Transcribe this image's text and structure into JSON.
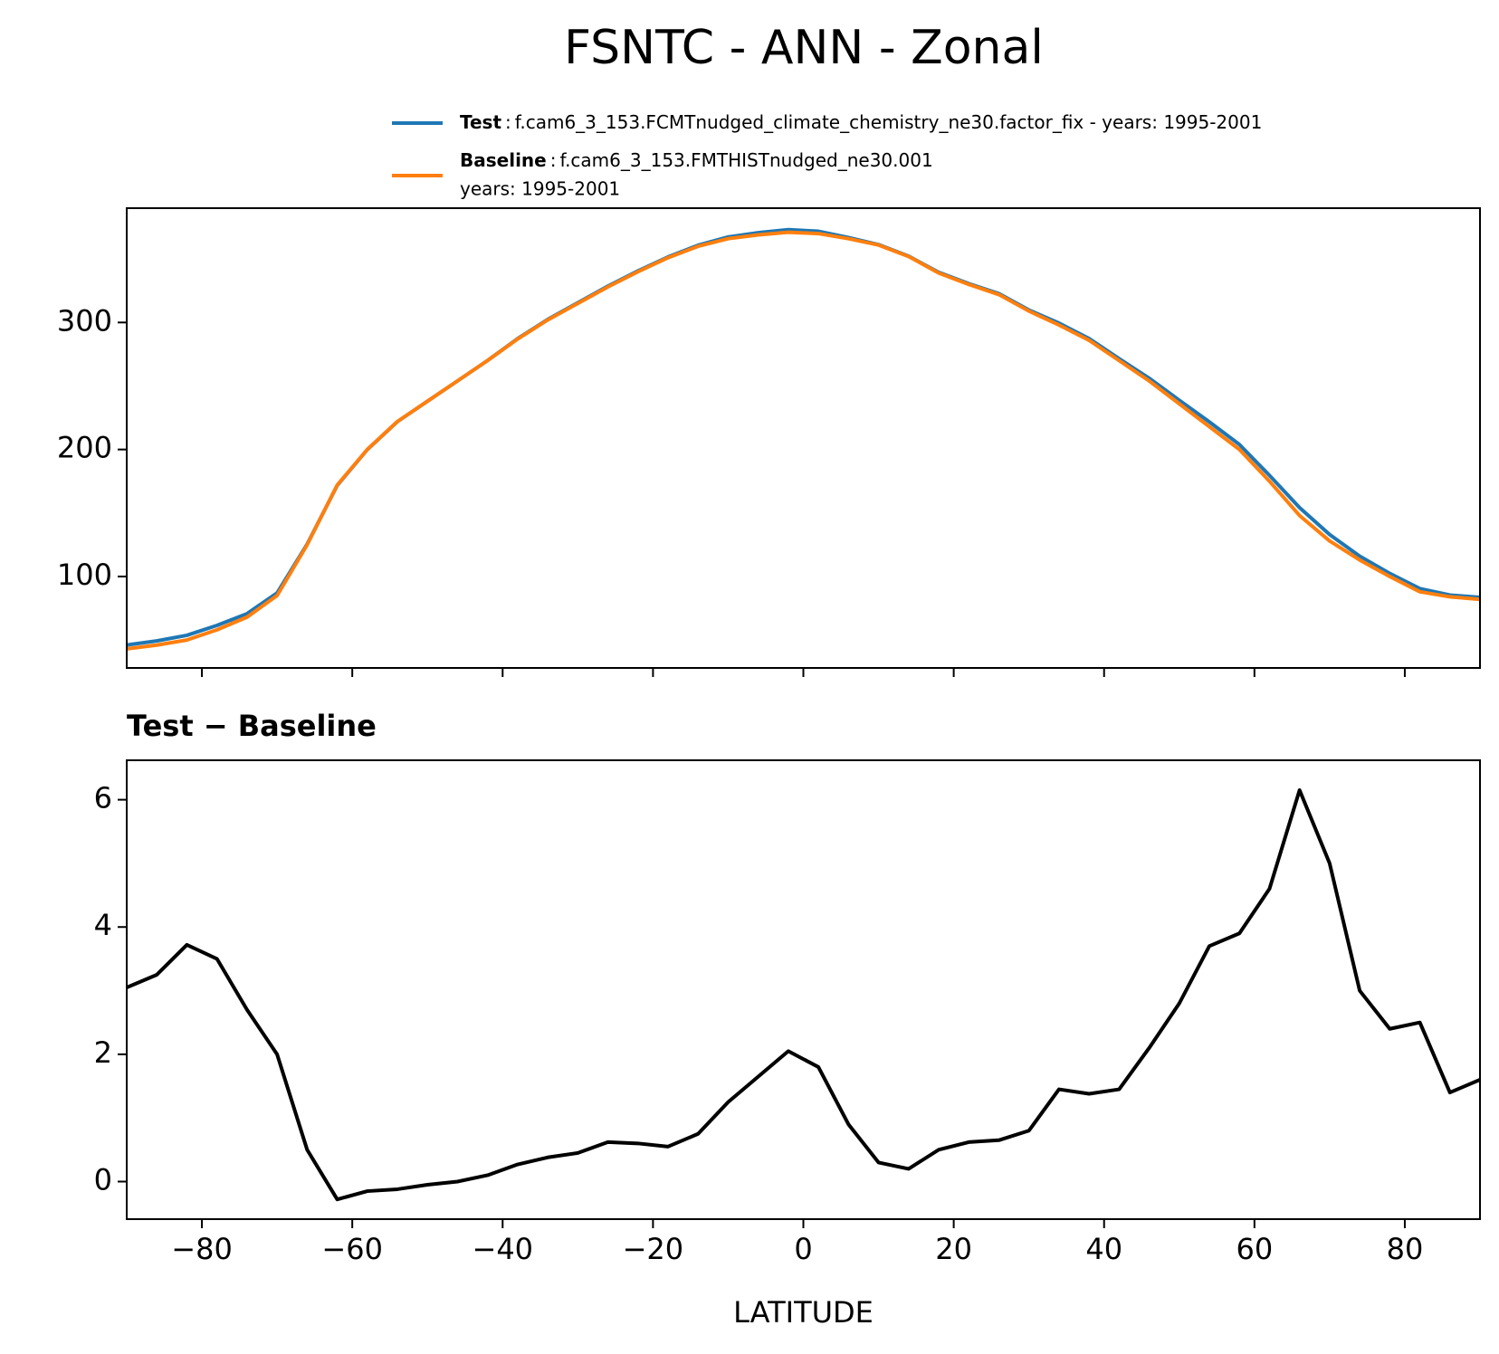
{
  "figure_title": "FSNTC - ANN - Zonal",
  "chart_data": [
    {
      "type": "line",
      "x": [
        -90,
        -86,
        -82,
        -78,
        -74,
        -70,
        -66,
        -62,
        -58,
        -54,
        -50,
        -46,
        -42,
        -38,
        -34,
        -30,
        -26,
        -22,
        -18,
        -14,
        -10,
        -6,
        -2,
        2,
        6,
        10,
        14,
        18,
        22,
        26,
        30,
        34,
        38,
        42,
        46,
        50,
        54,
        58,
        62,
        66,
        70,
        74,
        78,
        82,
        86,
        90
      ],
      "series": [
        {
          "name": "Test",
          "description": [
            "f.cam6_3_153.FCMTnudged_climate_chemistry_ne30.factor_fix - years: 1995-2001"
          ],
          "color": "#1f77b4",
          "values": [
            46.1,
            49.3,
            53.7,
            61.5,
            70.7,
            87.0,
            125.5,
            171.7,
            199.9,
            221.9,
            238.0,
            254.0,
            270.1,
            287.3,
            302.4,
            315.5,
            328.6,
            340.6,
            351.6,
            360.8,
            367.3,
            370.7,
            373.1,
            371.8,
            366.9,
            361.3,
            352.2,
            339.5,
            330.6,
            322.7,
            309.8,
            299.5,
            287.4,
            271.5,
            256.1,
            238.8,
            221.7,
            203.9,
            179.6,
            154.2,
            133.0,
            116.0,
            102.4,
            90.5,
            85.4,
            83.6
          ]
        },
        {
          "name": "Baseline",
          "description": [
            "f.cam6_3_153.FMTHISTnudged_ne30.001",
            "years: 1995-2001"
          ],
          "color": "#ff7f0e",
          "values": [
            43,
            46,
            50,
            58,
            68,
            85,
            125,
            172,
            200,
            222,
            238,
            254,
            270,
            287,
            302,
            315,
            328,
            340,
            351,
            360,
            366,
            369,
            371,
            370,
            366,
            361,
            352,
            339,
            330,
            322,
            309,
            298,
            286,
            270,
            254,
            236,
            218,
            200,
            175,
            148,
            128,
            113,
            100,
            88,
            84,
            82
          ]
        }
      ],
      "xlim": [
        -90,
        90
      ],
      "xticks": [
        -80,
        -60,
        -40,
        -20,
        0,
        20,
        40,
        60,
        80
      ],
      "show_xtick_labels": false,
      "ylim": [
        28,
        390
      ],
      "yticks": [
        100,
        200,
        300
      ]
    },
    {
      "type": "line",
      "title": "Test − Baseline",
      "x_label": "LATITUDE",
      "x": [
        -90,
        -86,
        -82,
        -78,
        -74,
        -70,
        -66,
        -62,
        -58,
        -54,
        -50,
        -46,
        -42,
        -38,
        -34,
        -30,
        -26,
        -22,
        -18,
        -14,
        -10,
        -6,
        -2,
        2,
        6,
        10,
        14,
        18,
        22,
        26,
        30,
        34,
        38,
        42,
        46,
        50,
        54,
        58,
        62,
        66,
        70,
        74,
        78,
        82,
        86,
        90
      ],
      "series": [
        {
          "color": "#000000",
          "values": [
            3.05,
            3.25,
            3.72,
            3.5,
            2.7,
            2.0,
            0.5,
            -0.28,
            -0.15,
            -0.12,
            -0.05,
            0.0,
            0.1,
            0.27,
            0.38,
            0.45,
            0.62,
            0.6,
            0.55,
            0.75,
            1.25,
            1.65,
            2.05,
            1.8,
            0.9,
            0.3,
            0.2,
            0.5,
            0.62,
            0.65,
            0.8,
            1.45,
            1.38,
            1.45,
            2.1,
            2.8,
            3.7,
            3.9,
            4.6,
            6.15,
            5.0,
            3.0,
            2.4,
            2.5,
            1.4,
            1.6
          ]
        }
      ],
      "xlim": [
        -90,
        90
      ],
      "xticks": [
        {
          "value": -80,
          "label": "−80"
        },
        {
          "value": -60,
          "label": "−60"
        },
        {
          "value": -40,
          "label": "−40"
        },
        {
          "value": -20,
          "label": "−20"
        },
        0,
        20,
        40,
        60,
        80
      ],
      "show_xtick_labels": true,
      "ylim": [
        -0.59,
        6.62
      ],
      "yticks": [
        0,
        2,
        4,
        6
      ]
    }
  ]
}
